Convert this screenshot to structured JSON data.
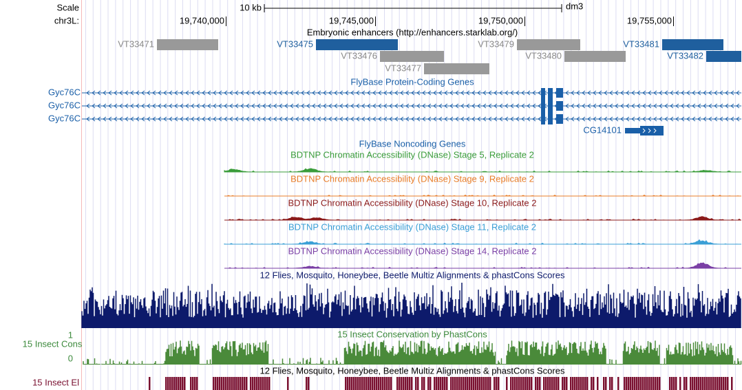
{
  "header": {
    "scale": "Scale",
    "scale_size": "10 kb",
    "assembly": "dm3",
    "chrom": "chr3L:",
    "positions": [
      "19,740,000",
      "19,745,000",
      "19,750,000",
      "19,755,000"
    ]
  },
  "enhancers": {
    "title": "Embryonic enhancers (http://enhancers.starklab.org/)",
    "items": [
      "VT33471",
      "VT33475",
      "VT33476",
      "VT33477",
      "VT33479",
      "VT33480",
      "VT33481",
      "VT33482"
    ]
  },
  "protein_genes": {
    "title": "FlyBase Protein-Coding Genes",
    "genes": [
      "Gyc76C",
      "Gyc76C",
      "Gyc76C",
      "CG14101"
    ]
  },
  "noncoding_genes": {
    "title": "FlyBase Noncoding Genes"
  },
  "dnase_tracks": [
    "BDTNP Chromatin Accessibility (DNase) Stage 5, Replicate 2",
    "BDTNP Chromatin Accessibility (DNase) Stage 9, Replicate 2",
    "BDTNP Chromatin Accessibility (DNase) Stage 10, Replicate 2",
    "BDTNP Chromatin Accessibility (DNase) Stage 11, Replicate 2",
    "BDTNP Chromatin Accessibility (DNase) Stage 14, Replicate 2"
  ],
  "conservation": {
    "multiz_title": "12 Flies, Mosquito, Honeybee, Beetle Multiz Alignments & phastCons Scores",
    "phastcons_title": "15 Insect Conservation by PhastCons",
    "phastcons_label": "15 Insect Cons",
    "axis_top": "1",
    "axis_bottom": "0",
    "multiz_title_2": "12 Flies, Mosquito, Honeybee, Beetle Multiz Alignments & phastCons Scores",
    "elements_label": "15 Insect El"
  }
}
